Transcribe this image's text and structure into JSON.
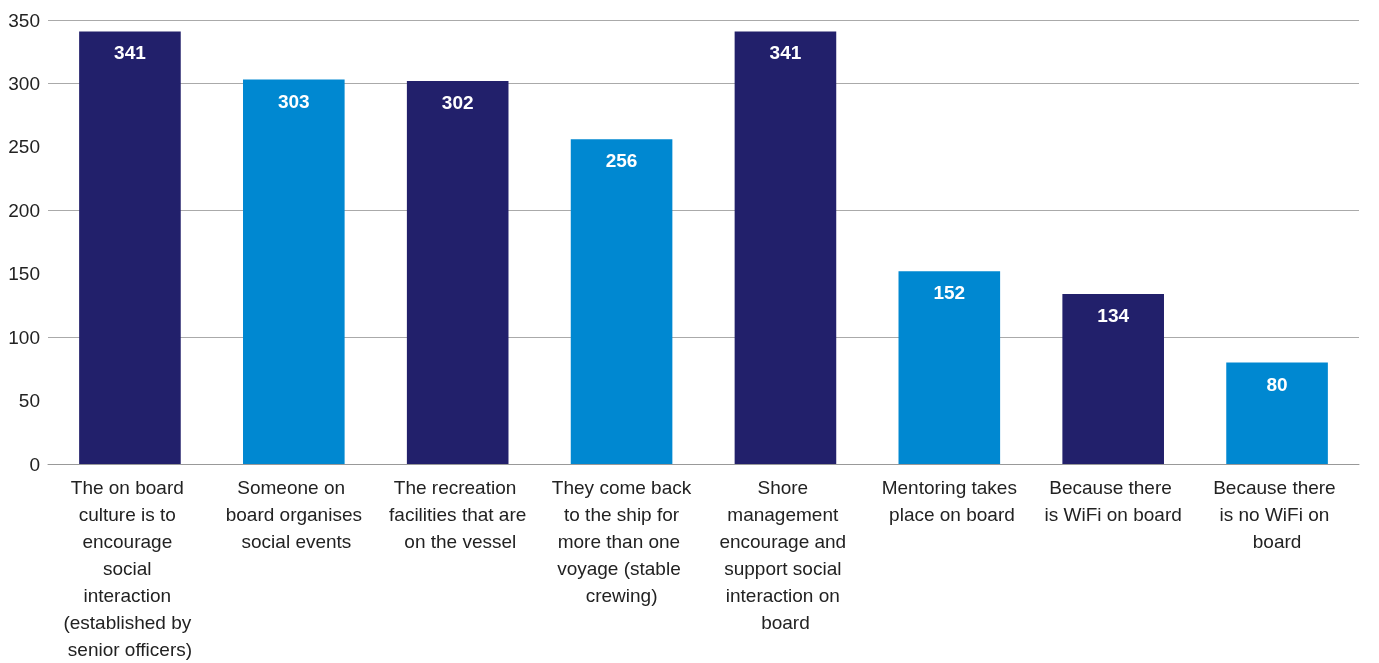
{
  "chart_data": {
    "type": "bar",
    "categories": [
      "The on board culture is to encourage social interaction (established by senior officers)",
      "Someone on board organises social events",
      "The recreation facilities that are on the vessel",
      "They come back to the ship for more than one voyage (stable crewing)",
      "Shore management encourage and support social interaction on board",
      "Mentoring takes place on board",
      "Because there is WiFi on board",
      "Because there is no WiFi on board"
    ],
    "values": [
      341,
      303,
      302,
      256,
      341,
      152,
      134,
      80
    ],
    "colors": [
      "#22206b",
      "#0088d1",
      "#22206b",
      "#0088d1",
      "#22206b",
      "#0088d1",
      "#22206b",
      "#0088d1"
    ],
    "data_labels": true,
    "ylim": [
      0,
      350
    ],
    "yticks": [
      0,
      50,
      100,
      150,
      200,
      250,
      300,
      350
    ],
    "grid": "y"
  }
}
